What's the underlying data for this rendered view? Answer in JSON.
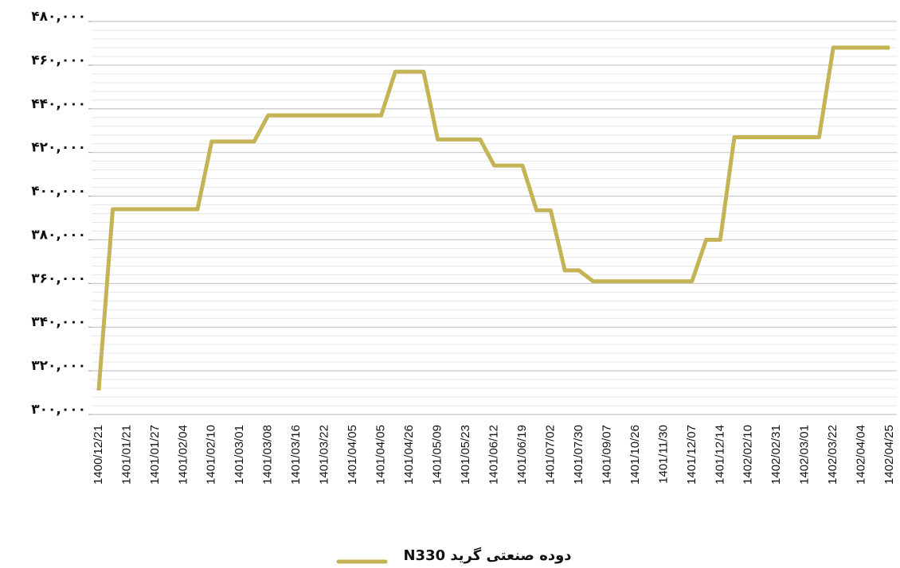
{
  "chart_data": {
    "type": "line",
    "categories": [
      "1400/12/21",
      null,
      "1401/01/21",
      null,
      "1401/01/27",
      null,
      "1401/02/04",
      null,
      "1401/02/10",
      null,
      "1401/03/01",
      null,
      "1401/03/08",
      null,
      "1401/03/16",
      null,
      "1401/03/22",
      null,
      "1401/04/05",
      null,
      "1401/04/05",
      null,
      "1401/04/26",
      null,
      "1401/05/09",
      null,
      "1401/05/23",
      null,
      "1401/06/12",
      null,
      "1401/06/19",
      null,
      "1401/07/02",
      null,
      "1401/07/30",
      null,
      "1401/09/07",
      null,
      "1401/10/26",
      null,
      "1401/11/30",
      null,
      "1401/12/07",
      null,
      "1401/12/14",
      null,
      "1402/02/10",
      null,
      "1402/02/31",
      null,
      "1402/03/01",
      null,
      "1402/03/22",
      null,
      "1402/04/04",
      null,
      "1402/04/25"
    ],
    "series": [
      {
        "name": "دوده صنعتی گرید N330",
        "color": "#c4b455",
        "values": [
          311000,
          394000,
          394000,
          394000,
          394000,
          394000,
          394000,
          394000,
          425000,
          425000,
          425000,
          425000,
          437000,
          437000,
          437000,
          437000,
          437000,
          437000,
          437000,
          437000,
          437000,
          457000,
          457000,
          457000,
          426000,
          426000,
          426000,
          426000,
          414000,
          414000,
          414000,
          393500,
          393500,
          366000,
          366000,
          361000,
          361000,
          361000,
          361000,
          361000,
          361000,
          361000,
          361000,
          380000,
          380000,
          427000,
          427000,
          427000,
          427000,
          427000,
          427000,
          427000,
          468000,
          468000,
          468000,
          468000,
          468000
        ]
      }
    ],
    "ylim": [
      300000,
      480000
    ],
    "yticks": [
      {
        "value": 300000,
        "label": "۳۰۰,۰۰۰"
      },
      {
        "value": 320000,
        "label": "۳۲۰,۰۰۰"
      },
      {
        "value": 340000,
        "label": "۳۴۰,۰۰۰"
      },
      {
        "value": 360000,
        "label": "۳۶۰,۰۰۰"
      },
      {
        "value": 380000,
        "label": "۳۸۰,۰۰۰"
      },
      {
        "value": 400000,
        "label": "۴۰۰,۰۰۰"
      },
      {
        "value": 420000,
        "label": "۴۲۰,۰۰۰"
      },
      {
        "value": 440000,
        "label": "۴۴۰,۰۰۰"
      },
      {
        "value": 460000,
        "label": "۴۶۰,۰۰۰"
      },
      {
        "value": 480000,
        "label": "۴۸۰,۰۰۰"
      }
    ],
    "grid": true,
    "legend": "bottom"
  }
}
